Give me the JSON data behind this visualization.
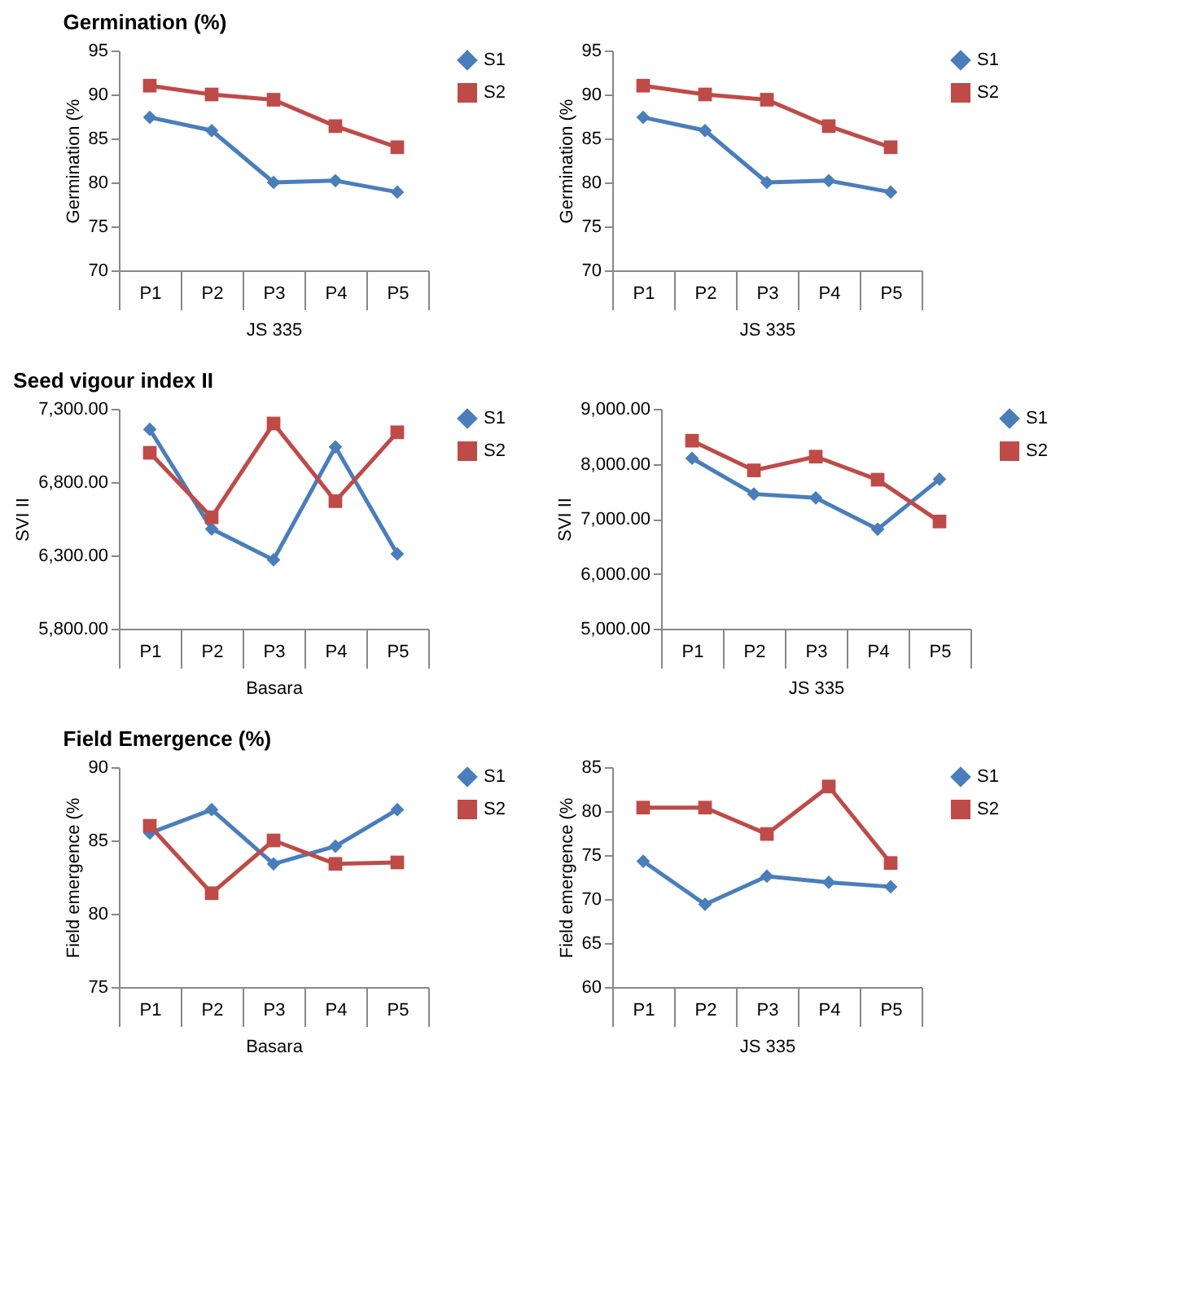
{
  "chart_data": [
    {
      "type": "line",
      "title": "Germination (%)",
      "ylabel": "Germination (%",
      "xlabel": "JS 335",
      "categories": [
        "P1",
        "P2",
        "P3",
        "P4",
        "P5"
      ],
      "ylim": [
        70,
        95
      ],
      "yticks": [
        70,
        75,
        80,
        85,
        90,
        95
      ],
      "grid": false,
      "legend": "right",
      "series": [
        {
          "name": "S1",
          "color": "#4a7ebb",
          "marker": "diamond",
          "values": [
            87.4,
            85.9,
            80.0,
            80.2,
            78.9
          ]
        },
        {
          "name": "S2",
          "color": "#be4b48",
          "marker": "square",
          "values": [
            91.0,
            90.0,
            89.4,
            86.4,
            84.0
          ]
        }
      ]
    },
    {
      "type": "line",
      "ylabel": "Germination (%",
      "xlabel": "JS 335",
      "categories": [
        "P1",
        "P2",
        "P3",
        "P4",
        "P5"
      ],
      "ylim": [
        70,
        95
      ],
      "yticks": [
        70,
        75,
        80,
        85,
        90,
        95
      ],
      "grid": false,
      "legend": "right",
      "series": [
        {
          "name": "S1",
          "color": "#4a7ebb",
          "marker": "diamond",
          "values": [
            87.4,
            85.9,
            80.0,
            80.2,
            78.9
          ]
        },
        {
          "name": "S2",
          "color": "#be4b48",
          "marker": "square",
          "values": [
            91.0,
            90.0,
            89.4,
            86.4,
            84.0
          ]
        }
      ]
    },
    {
      "type": "line",
      "title": "Seed vigour index II",
      "ylabel": "SVI II",
      "xlabel": "Basara",
      "categories": [
        "P1",
        "P2",
        "P3",
        "P4",
        "P5"
      ],
      "ylim": [
        5800,
        7300
      ],
      "yticks": [
        {
          "value": 5800,
          "label": "5,800.00"
        },
        {
          "value": 6300,
          "label": "6,300.00"
        },
        {
          "value": 6800,
          "label": "6,800.00"
        },
        {
          "value": 7300,
          "label": "7,300.00"
        }
      ],
      "grid": false,
      "legend": "right",
      "series": [
        {
          "name": "S1",
          "color": "#4a7ebb",
          "marker": "diamond",
          "values": [
            7160,
            6480,
            6270,
            7040,
            6310
          ]
        },
        {
          "name": "S2",
          "color": "#be4b48",
          "marker": "square",
          "values": [
            7000,
            6560,
            7200,
            6670,
            7140
          ]
        }
      ]
    },
    {
      "type": "line",
      "ylabel": "SVI II",
      "xlabel": "JS 335",
      "categories": [
        "P1",
        "P2",
        "P3",
        "P4",
        "P5"
      ],
      "ylim": [
        5000,
        9000
      ],
      "yticks": [
        {
          "value": 5000,
          "label": "5,000.00"
        },
        {
          "value": 6000,
          "label": "6,000.00"
        },
        {
          "value": 7000,
          "label": "7,000.00"
        },
        {
          "value": 8000,
          "label": "8,000.00"
        },
        {
          "value": 9000,
          "label": "9,000.00"
        }
      ],
      "grid": false,
      "legend": "right",
      "series": [
        {
          "name": "S1",
          "color": "#4a7ebb",
          "marker": "diamond",
          "values": [
            8100,
            7450,
            7380,
            6810,
            7720
          ]
        },
        {
          "name": "S2",
          "color": "#be4b48",
          "marker": "square",
          "values": [
            8420,
            7880,
            8130,
            7710,
            6950
          ]
        }
      ]
    },
    {
      "type": "line",
      "title": "Field Emergence (%)",
      "ylabel": "Field emergence (%",
      "xlabel": "Basara",
      "categories": [
        "P1",
        "P2",
        "P3",
        "P4",
        "P5"
      ],
      "ylim": [
        75,
        90
      ],
      "yticks": [
        75,
        80,
        85,
        90
      ],
      "grid": false,
      "legend": "right",
      "series": [
        {
          "name": "S1",
          "color": "#4a7ebb",
          "marker": "diamond",
          "values": [
            85.5,
            87.1,
            83.4,
            84.6,
            87.1
          ]
        },
        {
          "name": "S2",
          "color": "#be4b48",
          "marker": "square",
          "values": [
            86.0,
            81.4,
            85.0,
            83.4,
            83.5
          ]
        }
      ]
    },
    {
      "type": "line",
      "ylabel": "Field emergence (%",
      "xlabel": "JS 335",
      "categories": [
        "P1",
        "P2",
        "P3",
        "P4",
        "P5"
      ],
      "ylim": [
        60,
        85
      ],
      "yticks": [
        60,
        65,
        70,
        75,
        80,
        85
      ],
      "grid": false,
      "legend": "right",
      "series": [
        {
          "name": "S1",
          "color": "#4a7ebb",
          "marker": "diamond",
          "values": [
            74.3,
            69.4,
            72.6,
            71.9,
            71.4
          ]
        },
        {
          "name": "S2",
          "color": "#be4b48",
          "marker": "square",
          "values": [
            80.4,
            80.4,
            77.4,
            82.8,
            74.1
          ]
        }
      ]
    }
  ]
}
